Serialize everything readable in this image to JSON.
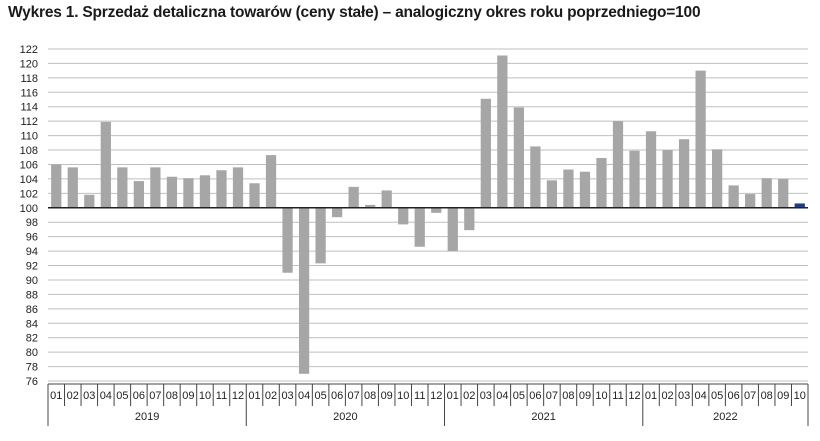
{
  "chart_data": {
    "type": "bar",
    "title": "Wykres 1. Sprzedaż detaliczna towarów (ceny stałe) – analogiczny okres roku poprzedniego=100",
    "xlabel": "",
    "ylabel": "",
    "baseline": 100,
    "ylim": [
      76,
      122
    ],
    "yticks": [
      76,
      78,
      80,
      82,
      84,
      86,
      88,
      90,
      92,
      94,
      96,
      98,
      100,
      102,
      104,
      106,
      108,
      110,
      112,
      114,
      116,
      118,
      120,
      122
    ],
    "grid": true,
    "colors": {
      "bar": "#a6a6a6",
      "highlight": "#1f3c88",
      "grid": "#bfbfbf"
    },
    "years": [
      {
        "label": "2019",
        "months": [
          "01",
          "02",
          "03",
          "04",
          "05",
          "06",
          "07",
          "08",
          "09",
          "10",
          "11",
          "12"
        ]
      },
      {
        "label": "2020",
        "months": [
          "01",
          "02",
          "03",
          "04",
          "05",
          "06",
          "07",
          "08",
          "09",
          "10",
          "11",
          "12"
        ]
      },
      {
        "label": "2021",
        "months": [
          "01",
          "02",
          "03",
          "04",
          "05",
          "06",
          "07",
          "08",
          "09",
          "10",
          "11",
          "12"
        ]
      },
      {
        "label": "2022",
        "months": [
          "01",
          "02",
          "03",
          "04",
          "05",
          "06",
          "07",
          "08",
          "09",
          "10"
        ]
      }
    ],
    "values": [
      106.0,
      105.6,
      101.8,
      111.9,
      105.6,
      103.7,
      105.6,
      104.3,
      104.1,
      104.5,
      105.2,
      105.6,
      103.4,
      107.3,
      91.0,
      77.0,
      92.3,
      98.7,
      102.9,
      100.4,
      102.4,
      97.7,
      94.6,
      99.3,
      94.0,
      96.9,
      115.1,
      121.1,
      113.9,
      108.5,
      103.8,
      105.3,
      105.0,
      106.9,
      112.0,
      107.9,
      110.6,
      108.0,
      109.5,
      119.0,
      108.1,
      103.1,
      101.9,
      104.1,
      104.0,
      100.6
    ],
    "highlight_index": 45
  }
}
